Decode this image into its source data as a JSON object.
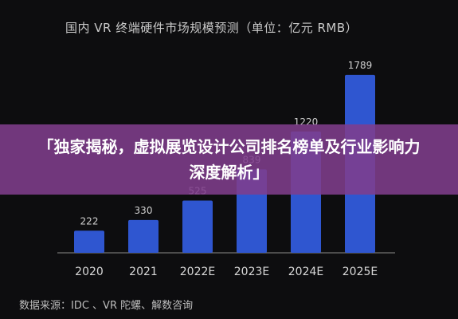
{
  "chart_data": {
    "type": "bar",
    "title": "国内 VR 终端硬件市场规模预测（单位：亿元 RMB）",
    "categories": [
      "2020",
      "2021",
      "2022E",
      "2023E",
      "2024E",
      "2025E"
    ],
    "values": [
      222,
      330,
      525,
      839,
      1220,
      1789
    ],
    "bar_color": "#2f56d0",
    "ylim": [
      0,
      1900
    ],
    "grid": false,
    "legend": "none",
    "source": "数据来源：IDC 、VR 陀螺、解数咨询"
  },
  "banner": {
    "text": "「独家揭秘，虚拟展览设计公司排名榜单及行业影响力深度解析」"
  }
}
